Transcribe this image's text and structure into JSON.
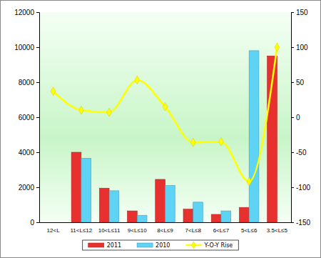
{
  "chart_data": {
    "type": "bar",
    "categories": [
      "12<L",
      "11<L≤12",
      "10<L≤11",
      "9<L≤10",
      "8<L≤9",
      "7<L≤8",
      "6<L≤7",
      "5<L≤6",
      "3.5<L≤5"
    ],
    "series": [
      {
        "name": "2011",
        "type": "bar",
        "color": "#e8312f",
        "values": [
          0,
          4000,
          1950,
          650,
          2450,
          750,
          450,
          850,
          9500
        ]
      },
      {
        "name": "2010",
        "type": "bar",
        "color": "#5fd3f3",
        "values": [
          0,
          3650,
          1800,
          400,
          2100,
          1150,
          650,
          9800,
          0
        ]
      },
      {
        "name": "Y-O-Y Rise",
        "type": "line",
        "axis": "y2",
        "color": "#ffff00",
        "marker": "diamond",
        "line_style": "solid",
        "values": [
          37,
          10,
          7,
          53,
          15,
          -36,
          -35,
          -92,
          100
        ]
      }
    ],
    "ylim": [
      0,
      12000
    ],
    "yticks": [
      0,
      2000,
      4000,
      6000,
      8000,
      10000,
      12000
    ],
    "y2lim": [
      -150,
      150
    ],
    "y2ticks": [
      -150,
      -100,
      -50,
      0,
      50,
      100,
      150
    ],
    "grid": false,
    "legend": "bottom"
  }
}
